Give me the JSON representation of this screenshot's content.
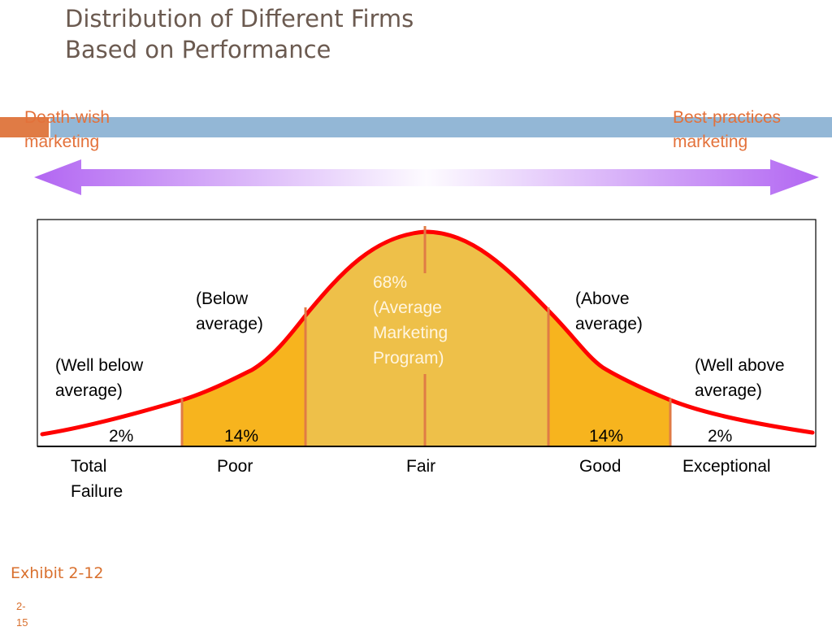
{
  "title": {
    "line1": "Distribution of Different Firms",
    "line2": "Based on Performance"
  },
  "spectrum": {
    "left_label": [
      "Death-wish",
      "marketing"
    ],
    "right_label": [
      "Best-practices",
      "marketing"
    ]
  },
  "segments": [
    {
      "id": "total-failure",
      "percent": "2%",
      "share": 2,
      "category": [
        "Total",
        "Failure"
      ],
      "descriptor": [
        "(Well below",
        "average)"
      ]
    },
    {
      "id": "poor",
      "percent": "14%",
      "share": 14,
      "category": [
        "Poor"
      ],
      "descriptor": [
        "(Below",
        "average)"
      ]
    },
    {
      "id": "fair",
      "percent": "",
      "share": 68,
      "category": [
        "Fair"
      ],
      "descriptor": [
        "68%",
        "(Average",
        "Marketing",
        "Program)"
      ]
    },
    {
      "id": "good",
      "percent": "14%",
      "share": 14,
      "category": [
        "Good"
      ],
      "descriptor": [
        "(Above",
        "average)"
      ]
    },
    {
      "id": "exceptional",
      "percent": "2%",
      "share": 2,
      "category": [
        "Exceptional"
      ],
      "descriptor": [
        "(Well above",
        "average)"
      ]
    }
  ],
  "colors": {
    "curve": "#ff0000",
    "outer_fill": "#f7b41e",
    "center_fill": "#eec049",
    "divider": "#e07b45",
    "arrow": "#b266f2",
    "title": "#6b5a50",
    "accent": "#d9702e"
  },
  "footer": {
    "exhibit": "Exhibit 2-12",
    "page_number": [
      "2-",
      "15"
    ]
  }
}
